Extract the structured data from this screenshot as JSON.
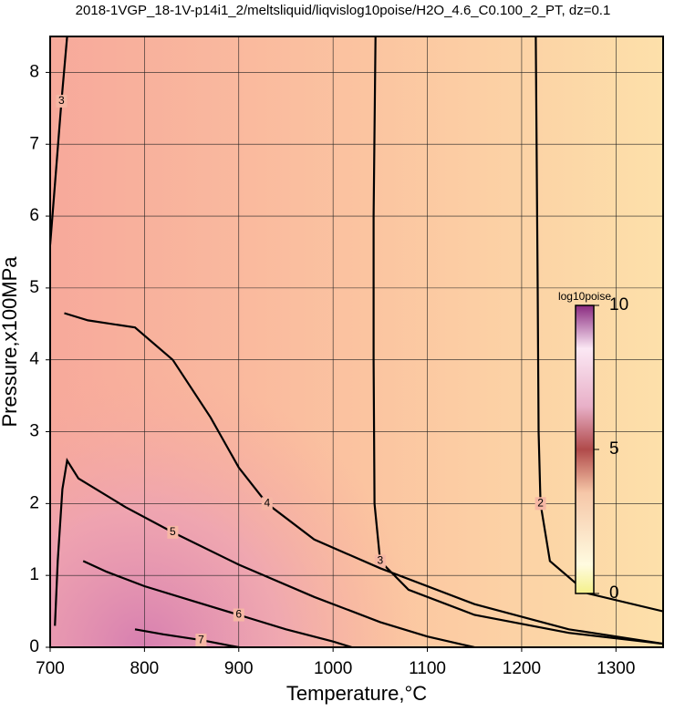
{
  "chart_data": {
    "type": "contour",
    "title": "2018-1VGP_18-1V-p14i1_2/meltsliquid/liqvislog10poise/H2O_4.6_C0.100_2_PT, dz=0.1",
    "x_label": "Temperature,°C",
    "y_label": "Pressure,x100MPa",
    "xlim": [
      700,
      1350
    ],
    "ylim": [
      0,
      8.5
    ],
    "xticks": [
      700,
      800,
      900,
      1000,
      1100,
      1200,
      1300
    ],
    "yticks": [
      0,
      1,
      2,
      3,
      4,
      5,
      6,
      7,
      8
    ],
    "grid": true,
    "contours": [
      {
        "level": 2,
        "x": [
          1215,
          1217,
          1218,
          1220,
          1230,
          1270,
          1350
        ],
        "y": [
          8.5,
          5,
          3,
          2,
          1.2,
          0.75,
          0.5
        ]
      },
      {
        "level": 3,
        "x": [
          1045,
          1043,
          1043,
          1044,
          1050,
          1080,
          1150,
          1250,
          1350
        ],
        "y": [
          8.5,
          6,
          4,
          2,
          1.2,
          0.8,
          0.45,
          0.2,
          0.05
        ]
      },
      {
        "level": 4,
        "x": [
          715,
          740,
          790,
          830,
          870,
          900,
          930,
          980,
          1050,
          1150,
          1250,
          1350
        ],
        "y": [
          4.65,
          4.55,
          4.45,
          4,
          3.2,
          2.5,
          2,
          1.5,
          1.1,
          0.6,
          0.25,
          0.05
        ]
      },
      {
        "level": 5,
        "x": [
          705,
          708,
          713,
          718,
          730,
          780,
          830,
          900,
          980,
          1050,
          1100,
          1150
        ],
        "y": [
          0.3,
          1.2,
          2.2,
          2.6,
          2.35,
          1.95,
          1.6,
          1.15,
          0.7,
          0.35,
          0.15,
          0
        ]
      },
      {
        "level": 6,
        "x": [
          735,
          760,
          800,
          850,
          900,
          950,
          1000,
          1020
        ],
        "y": [
          1.2,
          1.05,
          0.85,
          0.65,
          0.45,
          0.25,
          0.08,
          0
        ]
      },
      {
        "level": 7,
        "x": [
          790,
          820,
          860,
          900
        ],
        "y": [
          0.25,
          0.18,
          0.1,
          0
        ]
      },
      {
        "level": 3,
        "x": [
          700,
          706,
          712,
          718
        ],
        "y": [
          5.6,
          6.6,
          7.6,
          8.5
        ]
      }
    ],
    "colorbar": {
      "title": "log10poise",
      "lim": [
        0,
        10
      ],
      "ticks": [
        0,
        5,
        10
      ]
    }
  }
}
